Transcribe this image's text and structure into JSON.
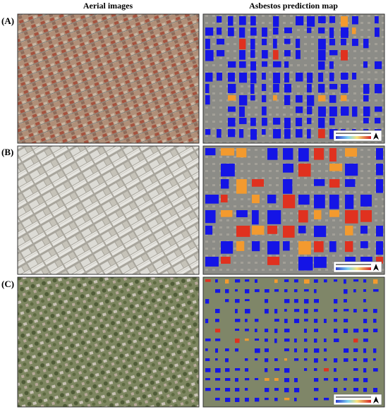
{
  "columns": [
    "Aerial images",
    "Asbestos prediction map"
  ],
  "rows": [
    {
      "label": "(A)"
    },
    {
      "label": "(B)"
    },
    {
      "label": "(C)"
    }
  ]
}
